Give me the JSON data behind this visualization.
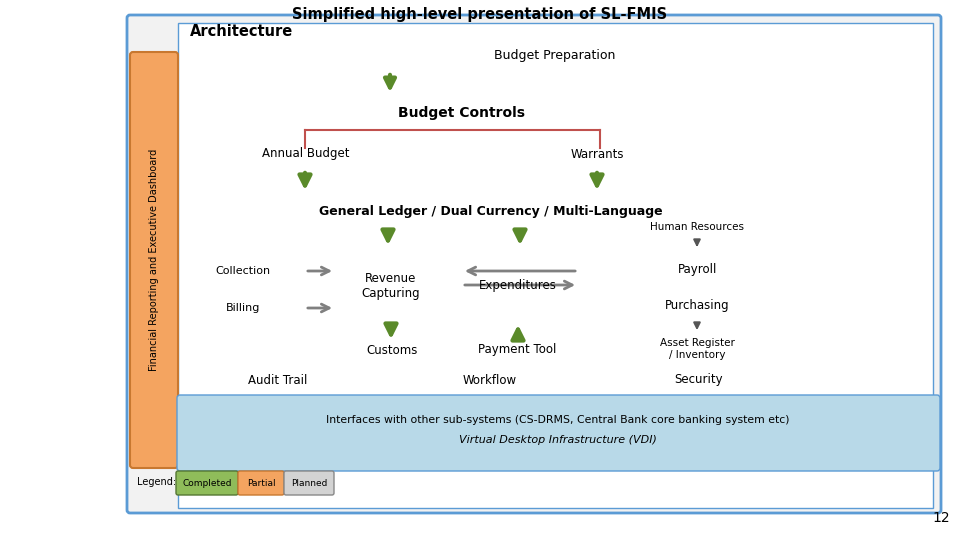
{
  "title_line1": "Simplified high-level presentation of SL-FMIS",
  "title_line2": "Architecture",
  "page_number": "12",
  "colors": {
    "background": "#ffffff",
    "outer_bg": "#e8e8e8",
    "border_blue": "#5b9bd5",
    "side_bar_bg": "#f4a460",
    "gray_box": "#c0c0c0",
    "green_box": "#8fbc5a",
    "green_arrow": "#5a8a2a",
    "red_line": "#c0504d",
    "light_blue_box": "#b8d9e8",
    "completed_box": "#8fbc5a",
    "partial_box": "#f4a460",
    "planned_box": "#d3d3d3",
    "orange_box": "#f4a460",
    "white": "#ffffff",
    "dark_gray": "#808080"
  },
  "side_bar_text": "Financial Reporting and Executive Dashboard"
}
